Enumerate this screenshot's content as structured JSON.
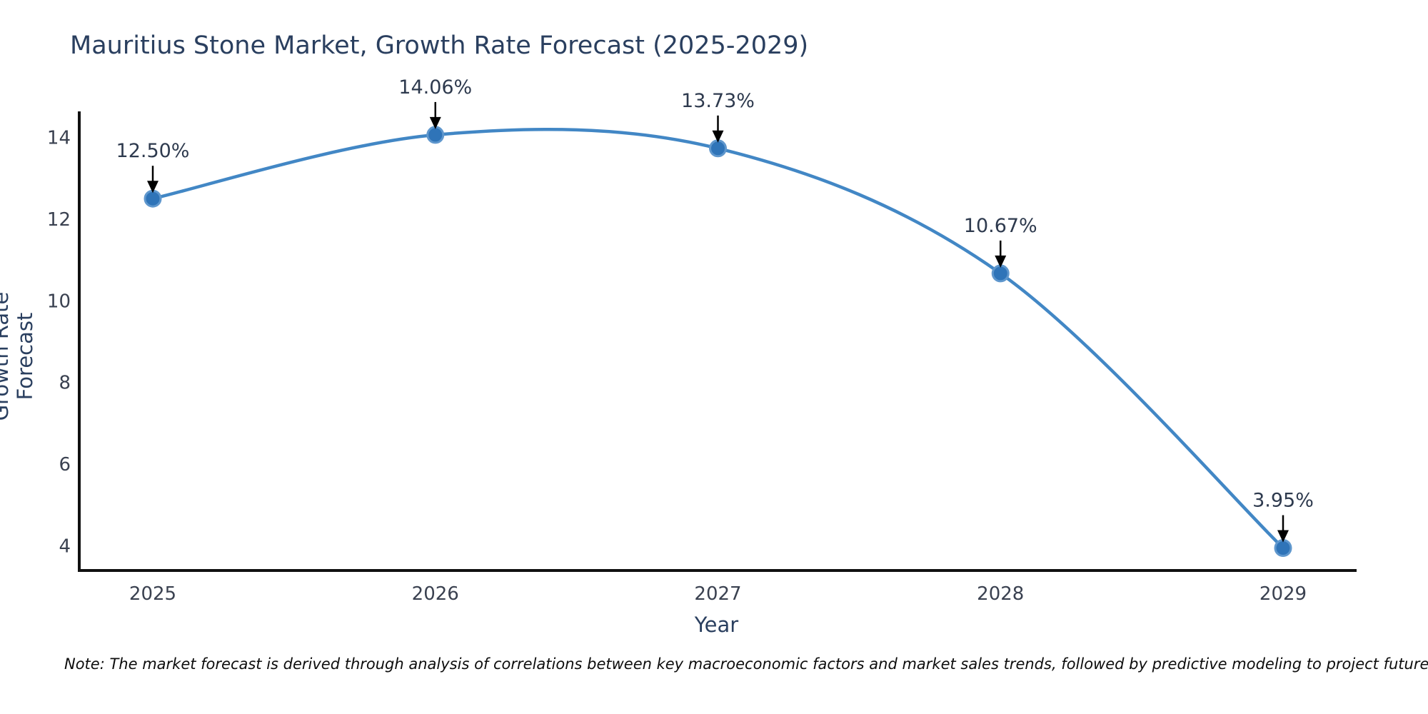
{
  "header": {
    "title": "Mauritius Stone Market, Growth Rate Forecast (2025-2029)"
  },
  "footer": {
    "note": "Note: The market forecast is derived through analysis of correlations between key macroeconomic factors and market sales trends, followed by predictive modeling to project future sales."
  },
  "chart_data": {
    "type": "line",
    "title": "Mauritius Stone Market, Growth Rate Forecast (2025-2029)",
    "x": [
      "2025",
      "2026",
      "2027",
      "2028",
      "2029"
    ],
    "values": [
      12.5,
      14.06,
      13.73,
      10.67,
      3.95
    ],
    "point_labels": [
      "12.50%",
      "14.06%",
      "13.73%",
      "10.67%",
      "3.95%"
    ],
    "xlabel": "Year",
    "ylabel": "Growth Rate Forecast",
    "yticks": [
      4,
      6,
      8,
      10,
      12,
      14
    ],
    "ylim": [
      3.4,
      14.6
    ],
    "line_shape": "spline",
    "grid": false,
    "legend": false,
    "colors": {
      "line": "#4287c5",
      "marker_fill": "#2f74b8",
      "marker_edge": "#5f97cd",
      "axis": "#111111",
      "annotation_arrow": "#000000",
      "title_text": "#2a3f5f"
    }
  }
}
